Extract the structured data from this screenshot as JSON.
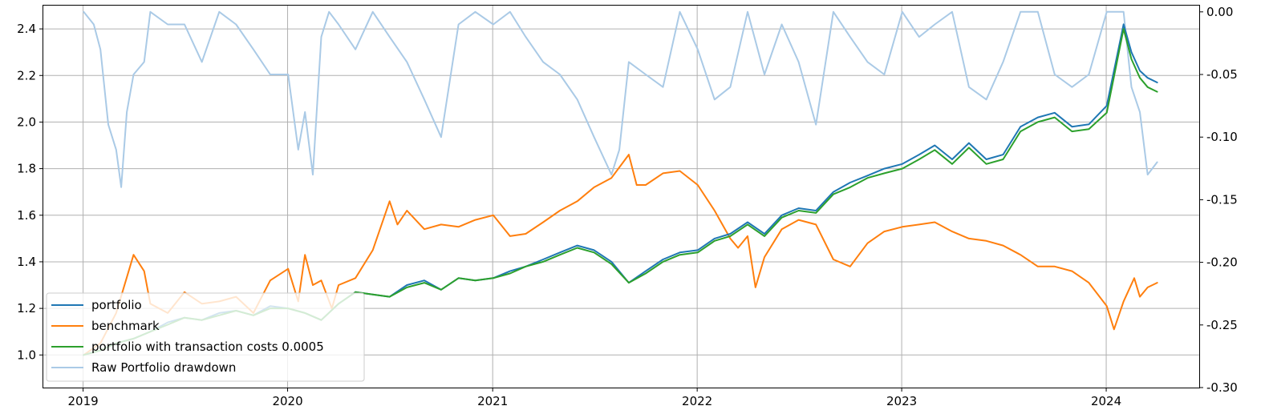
{
  "chart_data": {
    "type": "line",
    "title": "",
    "xlabel": "",
    "ylabel": "",
    "y2label": "",
    "x_tick_labels": [
      "2019",
      "2020",
      "2021",
      "2022",
      "2023",
      "2024"
    ],
    "xlim": [
      "2018-10-22",
      "2024-06-15"
    ],
    "ylim": [
      0.86,
      2.5
    ],
    "y_ticks": [
      1.0,
      1.2,
      1.4,
      1.6,
      1.8,
      2.0,
      2.2,
      2.4
    ],
    "y_tick_labels": [
      "1.0",
      "1.2",
      "1.4",
      "1.6",
      "1.8",
      "2.0",
      "2.2",
      "2.4"
    ],
    "y2lim": [
      -0.3,
      0.005
    ],
    "y2_ticks": [
      0.0,
      -0.05,
      -0.1,
      -0.15,
      -0.2,
      -0.25,
      -0.3
    ],
    "y2_tick_labels": [
      "0.00",
      "-0.05",
      "-0.10",
      "-0.15",
      "-0.20",
      "-0.25",
      "-0.30"
    ],
    "grid": true,
    "legend_position": "lower-left",
    "series": [
      {
        "name": "portfolio",
        "axis": "left",
        "color": "#1f77b4",
        "x": [
          "2019-01-02",
          "2019-02-01",
          "2019-03-01",
          "2019-04-01",
          "2019-05-01",
          "2019-06-01",
          "2019-07-01",
          "2019-08-01",
          "2019-09-01",
          "2019-10-01",
          "2019-11-01",
          "2019-12-01",
          "2020-01-02",
          "2020-02-01",
          "2020-03-01",
          "2020-04-01",
          "2020-05-01",
          "2020-06-01",
          "2020-07-01",
          "2020-08-01",
          "2020-09-01",
          "2020-10-01",
          "2020-11-01",
          "2020-12-01",
          "2021-01-02",
          "2021-02-01",
          "2021-03-01",
          "2021-04-01",
          "2021-05-01",
          "2021-06-01",
          "2021-07-01",
          "2021-08-01",
          "2021-09-01",
          "2021-10-01",
          "2021-11-01",
          "2021-12-01",
          "2022-01-02",
          "2022-02-01",
          "2022-03-01",
          "2022-04-01",
          "2022-05-01",
          "2022-06-01",
          "2022-07-01",
          "2022-08-01",
          "2022-09-01",
          "2022-10-01",
          "2022-11-01",
          "2022-12-01",
          "2023-01-02",
          "2023-02-01",
          "2023-03-01",
          "2023-04-01",
          "2023-05-01",
          "2023-06-01",
          "2023-07-01",
          "2023-08-01",
          "2023-09-01",
          "2023-10-01",
          "2023-11-01",
          "2023-12-01",
          "2024-01-02",
          "2024-02-01",
          "2024-02-15",
          "2024-03-01",
          "2024-03-15",
          "2024-04-01"
        ],
        "values": [
          1.0,
          1.02,
          1.05,
          1.07,
          1.1,
          1.14,
          1.16,
          1.15,
          1.18,
          1.19,
          1.17,
          1.21,
          1.2,
          1.18,
          1.15,
          1.22,
          1.27,
          1.26,
          1.25,
          1.3,
          1.32,
          1.28,
          1.33,
          1.32,
          1.33,
          1.36,
          1.38,
          1.41,
          1.44,
          1.47,
          1.45,
          1.4,
          1.31,
          1.36,
          1.41,
          1.44,
          1.45,
          1.5,
          1.52,
          1.57,
          1.52,
          1.6,
          1.63,
          1.62,
          1.7,
          1.74,
          1.77,
          1.8,
          1.82,
          1.86,
          1.9,
          1.84,
          1.91,
          1.84,
          1.86,
          1.98,
          2.02,
          2.04,
          1.98,
          1.99,
          2.07,
          2.42,
          2.3,
          2.22,
          2.19,
          2.17
        ]
      },
      {
        "name": "benchmark",
        "axis": "left",
        "color": "#ff7f0e",
        "x": [
          "2019-01-02",
          "2019-02-01",
          "2019-03-01",
          "2019-04-01",
          "2019-04-20",
          "2019-05-01",
          "2019-06-01",
          "2019-07-01",
          "2019-08-01",
          "2019-09-01",
          "2019-10-01",
          "2019-11-01",
          "2019-12-01",
          "2020-01-02",
          "2020-01-20",
          "2020-02-01",
          "2020-02-15",
          "2020-03-01",
          "2020-03-20",
          "2020-04-01",
          "2020-05-01",
          "2020-06-01",
          "2020-07-01",
          "2020-07-15",
          "2020-08-01",
          "2020-09-01",
          "2020-10-01",
          "2020-11-01",
          "2020-12-01",
          "2021-01-02",
          "2021-02-01",
          "2021-03-01",
          "2021-04-01",
          "2021-05-01",
          "2021-06-01",
          "2021-07-01",
          "2021-08-01",
          "2021-09-01",
          "2021-09-15",
          "2021-10-01",
          "2021-11-01",
          "2021-12-01",
          "2022-01-02",
          "2022-02-01",
          "2022-03-01",
          "2022-03-15",
          "2022-04-01",
          "2022-04-15",
          "2022-05-01",
          "2022-06-01",
          "2022-07-01",
          "2022-08-01",
          "2022-09-01",
          "2022-10-01",
          "2022-11-01",
          "2022-12-01",
          "2023-01-02",
          "2023-02-01",
          "2023-03-01",
          "2023-04-01",
          "2023-05-01",
          "2023-06-01",
          "2023-07-01",
          "2023-08-01",
          "2023-09-01",
          "2023-10-01",
          "2023-11-01",
          "2023-12-01",
          "2024-01-02",
          "2024-01-15",
          "2024-02-01",
          "2024-02-20",
          "2024-03-01",
          "2024-03-15",
          "2024-04-01"
        ],
        "values": [
          1.0,
          1.05,
          1.18,
          1.43,
          1.36,
          1.22,
          1.18,
          1.27,
          1.22,
          1.23,
          1.25,
          1.18,
          1.32,
          1.37,
          1.23,
          1.43,
          1.3,
          1.32,
          1.2,
          1.3,
          1.33,
          1.45,
          1.66,
          1.56,
          1.62,
          1.54,
          1.56,
          1.55,
          1.58,
          1.6,
          1.51,
          1.52,
          1.57,
          1.62,
          1.66,
          1.72,
          1.76,
          1.86,
          1.73,
          1.73,
          1.78,
          1.79,
          1.73,
          1.62,
          1.5,
          1.46,
          1.51,
          1.29,
          1.42,
          1.54,
          1.58,
          1.56,
          1.41,
          1.38,
          1.48,
          1.53,
          1.55,
          1.56,
          1.57,
          1.53,
          1.5,
          1.49,
          1.47,
          1.43,
          1.38,
          1.38,
          1.36,
          1.31,
          1.21,
          1.11,
          1.23,
          1.33,
          1.25,
          1.29,
          1.31
        ]
      },
      {
        "name": "portfolio with transaction costs 0.0005",
        "axis": "left",
        "color": "#2ca02c",
        "x": [
          "2019-01-02",
          "2019-02-01",
          "2019-03-01",
          "2019-04-01",
          "2019-05-01",
          "2019-06-01",
          "2019-07-01",
          "2019-08-01",
          "2019-09-01",
          "2019-10-01",
          "2019-11-01",
          "2019-12-01",
          "2020-01-02",
          "2020-02-01",
          "2020-03-01",
          "2020-04-01",
          "2020-05-01",
          "2020-06-01",
          "2020-07-01",
          "2020-08-01",
          "2020-09-01",
          "2020-10-01",
          "2020-11-01",
          "2020-12-01",
          "2021-01-02",
          "2021-02-01",
          "2021-03-01",
          "2021-04-01",
          "2021-05-01",
          "2021-06-01",
          "2021-07-01",
          "2021-08-01",
          "2021-09-01",
          "2021-10-01",
          "2021-11-01",
          "2021-12-01",
          "2022-01-02",
          "2022-02-01",
          "2022-03-01",
          "2022-04-01",
          "2022-05-01",
          "2022-06-01",
          "2022-07-01",
          "2022-08-01",
          "2022-09-01",
          "2022-10-01",
          "2022-11-01",
          "2022-12-01",
          "2023-01-02",
          "2023-02-01",
          "2023-03-01",
          "2023-04-01",
          "2023-05-01",
          "2023-06-01",
          "2023-07-01",
          "2023-08-01",
          "2023-09-01",
          "2023-10-01",
          "2023-11-01",
          "2023-12-01",
          "2024-01-02",
          "2024-02-01",
          "2024-02-15",
          "2024-03-01",
          "2024-03-15",
          "2024-04-01"
        ],
        "values": [
          1.0,
          1.02,
          1.05,
          1.07,
          1.1,
          1.13,
          1.16,
          1.15,
          1.17,
          1.19,
          1.17,
          1.2,
          1.2,
          1.18,
          1.15,
          1.22,
          1.27,
          1.26,
          1.25,
          1.29,
          1.31,
          1.28,
          1.33,
          1.32,
          1.33,
          1.35,
          1.38,
          1.4,
          1.43,
          1.46,
          1.44,
          1.39,
          1.31,
          1.35,
          1.4,
          1.43,
          1.44,
          1.49,
          1.51,
          1.56,
          1.51,
          1.59,
          1.62,
          1.61,
          1.69,
          1.72,
          1.76,
          1.78,
          1.8,
          1.84,
          1.88,
          1.82,
          1.89,
          1.82,
          1.84,
          1.96,
          2.0,
          2.02,
          1.96,
          1.97,
          2.04,
          2.4,
          2.27,
          2.19,
          2.15,
          2.13
        ]
      },
      {
        "name": "Raw Portfolio drawdown",
        "axis": "right",
        "color": "#aacae6",
        "x": [
          "2019-01-02",
          "2019-01-20",
          "2019-02-01",
          "2019-02-15",
          "2019-03-01",
          "2019-03-10",
          "2019-03-20",
          "2019-04-01",
          "2019-04-20",
          "2019-05-01",
          "2019-06-01",
          "2019-07-01",
          "2019-08-01",
          "2019-09-01",
          "2019-10-01",
          "2019-11-01",
          "2019-12-01",
          "2020-01-02",
          "2020-01-20",
          "2020-02-01",
          "2020-02-15",
          "2020-03-01",
          "2020-03-15",
          "2020-04-01",
          "2020-05-01",
          "2020-06-01",
          "2020-07-01",
          "2020-08-01",
          "2020-09-01",
          "2020-10-01",
          "2020-11-01",
          "2020-12-01",
          "2021-01-02",
          "2021-02-01",
          "2021-03-01",
          "2021-04-01",
          "2021-05-01",
          "2021-06-01",
          "2021-07-01",
          "2021-08-01",
          "2021-08-15",
          "2021-09-01",
          "2021-10-01",
          "2021-11-01",
          "2021-12-01",
          "2022-01-02",
          "2022-02-01",
          "2022-03-01",
          "2022-04-01",
          "2022-05-01",
          "2022-06-01",
          "2022-07-01",
          "2022-08-01",
          "2022-09-01",
          "2022-10-01",
          "2022-11-01",
          "2022-12-01",
          "2023-01-02",
          "2023-02-01",
          "2023-03-01",
          "2023-04-01",
          "2023-05-01",
          "2023-06-01",
          "2023-07-01",
          "2023-08-01",
          "2023-09-01",
          "2023-10-01",
          "2023-11-01",
          "2023-12-01",
          "2024-01-02",
          "2024-02-01",
          "2024-02-15",
          "2024-03-01",
          "2024-03-15",
          "2024-04-01"
        ],
        "values": [
          0.0,
          -0.01,
          -0.03,
          -0.09,
          -0.11,
          -0.14,
          -0.08,
          -0.05,
          -0.04,
          0.0,
          -0.01,
          -0.01,
          -0.04,
          0.0,
          -0.01,
          -0.03,
          -0.05,
          -0.05,
          -0.11,
          -0.08,
          -0.13,
          -0.02,
          0.0,
          -0.01,
          -0.03,
          0.0,
          -0.02,
          -0.04,
          -0.07,
          -0.1,
          -0.01,
          0.0,
          -0.01,
          0.0,
          -0.02,
          -0.04,
          -0.05,
          -0.07,
          -0.1,
          -0.13,
          -0.11,
          -0.04,
          -0.05,
          -0.06,
          0.0,
          -0.03,
          -0.07,
          -0.06,
          0.0,
          -0.05,
          -0.01,
          -0.04,
          -0.09,
          0.0,
          -0.02,
          -0.04,
          -0.05,
          0.0,
          -0.02,
          -0.01,
          0.0,
          -0.06,
          -0.07,
          -0.04,
          0.0,
          0.0,
          -0.05,
          -0.06,
          -0.05,
          0.0,
          0.0,
          -0.06,
          -0.08,
          -0.13,
          -0.12
        ]
      }
    ]
  }
}
